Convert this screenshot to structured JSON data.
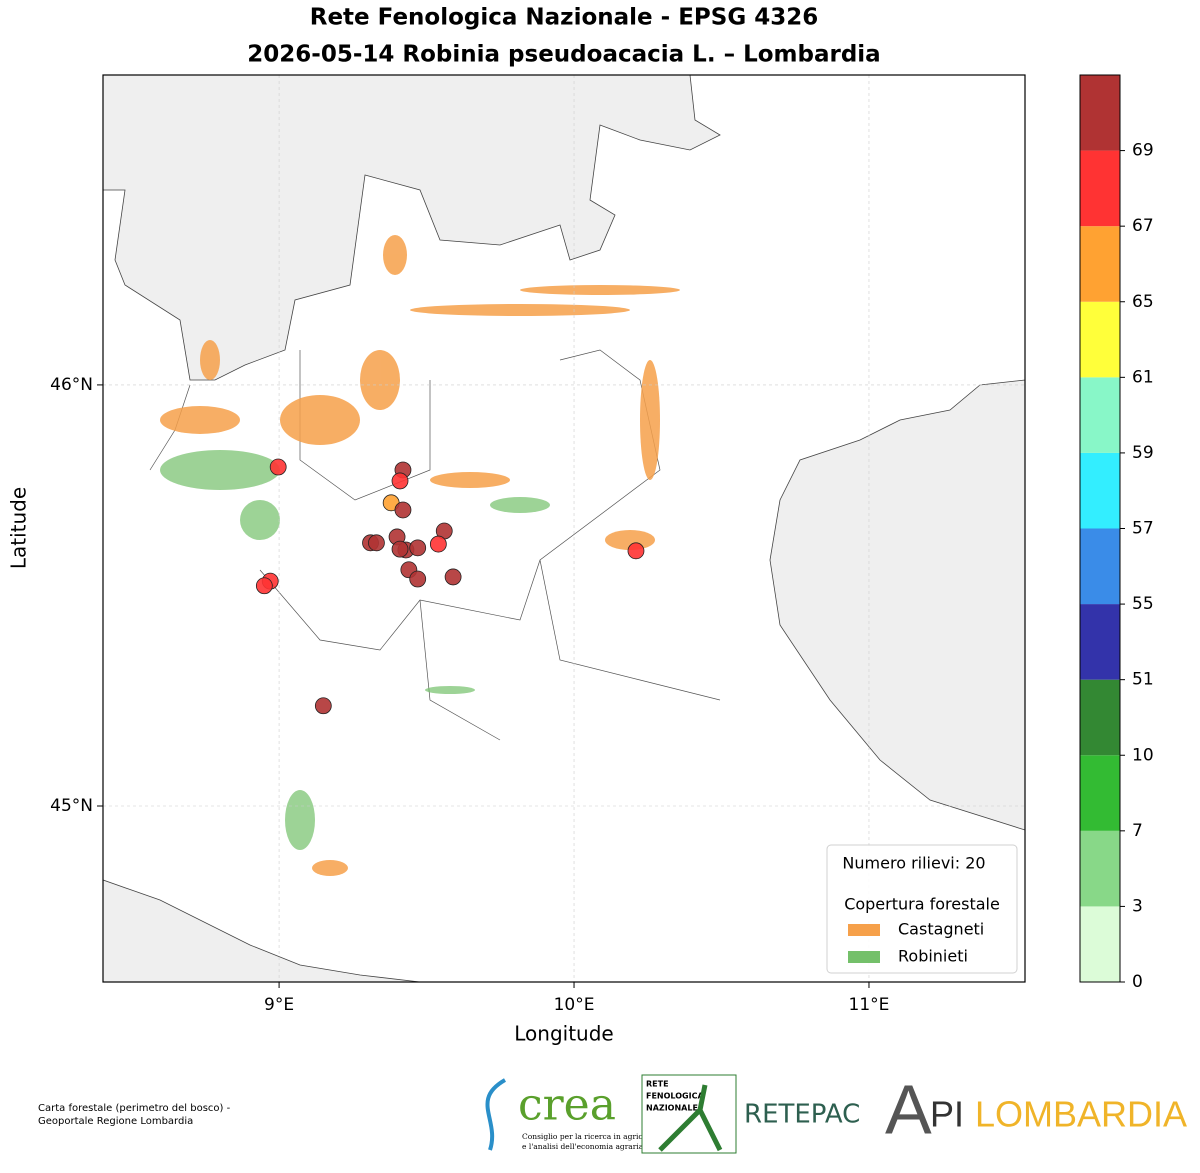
{
  "chart_data": {
    "type": "scatter",
    "title": "Rete Fenologica Nazionale - EPSG 4326",
    "subtitle": "2026-05-14 Robinia pseudoacacia L. – Lombardia",
    "x_label": "Longitude",
    "y_label": "Latitude",
    "xlim": [
      8.403,
      11.529
    ],
    "ylim": [
      44.582,
      46.736
    ],
    "xticks": [
      {
        "value": 9,
        "label": "9°E"
      },
      {
        "value": 10,
        "label": "10°E"
      },
      {
        "value": 11,
        "label": "11°E"
      }
    ],
    "yticks": [
      {
        "value": 45,
        "label": "45°N"
      },
      {
        "value": 46,
        "label": "46°N"
      }
    ],
    "grid": true,
    "x": [
      8.997,
      9.42,
      9.41,
      9.38,
      9.42,
      9.31,
      9.33,
      9.4,
      9.56,
      9.43,
      9.47,
      9.54,
      9.44,
      9.47,
      9.59,
      8.97,
      8.95,
      10.21,
      9.15,
      9.41
    ],
    "y": [
      45.805,
      45.798,
      45.772,
      45.72,
      45.703,
      45.625,
      45.625,
      45.639,
      45.653,
      45.608,
      45.613,
      45.622,
      45.561,
      45.539,
      45.544,
      45.534,
      45.523,
      45.606,
      45.238,
      45.61
    ],
    "values": [
      68,
      71,
      68,
      66,
      71,
      71,
      71,
      71,
      71,
      71,
      71,
      68,
      71,
      71,
      71,
      68,
      68,
      68,
      71,
      71
    ],
    "colorbar": {
      "bounds": [
        0,
        3,
        7,
        10,
        51,
        55,
        57,
        59,
        61,
        65,
        67,
        69
      ],
      "colors": [
        "#dcfcd8",
        "#88d888",
        "#33bb33",
        "#338833",
        "#3333aa",
        "#3a8ce8",
        "#33eeff",
        "#88f7c8",
        "#ffff3a",
        "#ffa232",
        "#ff3333",
        "#b03333"
      ]
    },
    "legend": {
      "count_label": "Numero rilievi: 20",
      "title": "Copertura forestale",
      "items": [
        {
          "name": "Castagneti",
          "color": "#f6a04a"
        },
        {
          "name": "Robinieti",
          "color": "#74c06a"
        }
      ]
    }
  },
  "footer": {
    "source": [
      "Carta forestale (perimetro del bosco) -",
      "Geoportale Regione Lombardia"
    ],
    "crea": "crea",
    "crea_sub": [
      "Consiglio per la ricerca in agricoltura",
      "e l'analisi dell'economia agraria"
    ],
    "rfn": [
      "RETE",
      "FENOLOGICA",
      "NAZIONALE"
    ],
    "retepac": "RETEPAC",
    "api": [
      "A",
      "PI",
      "LOMBARDIA"
    ]
  }
}
